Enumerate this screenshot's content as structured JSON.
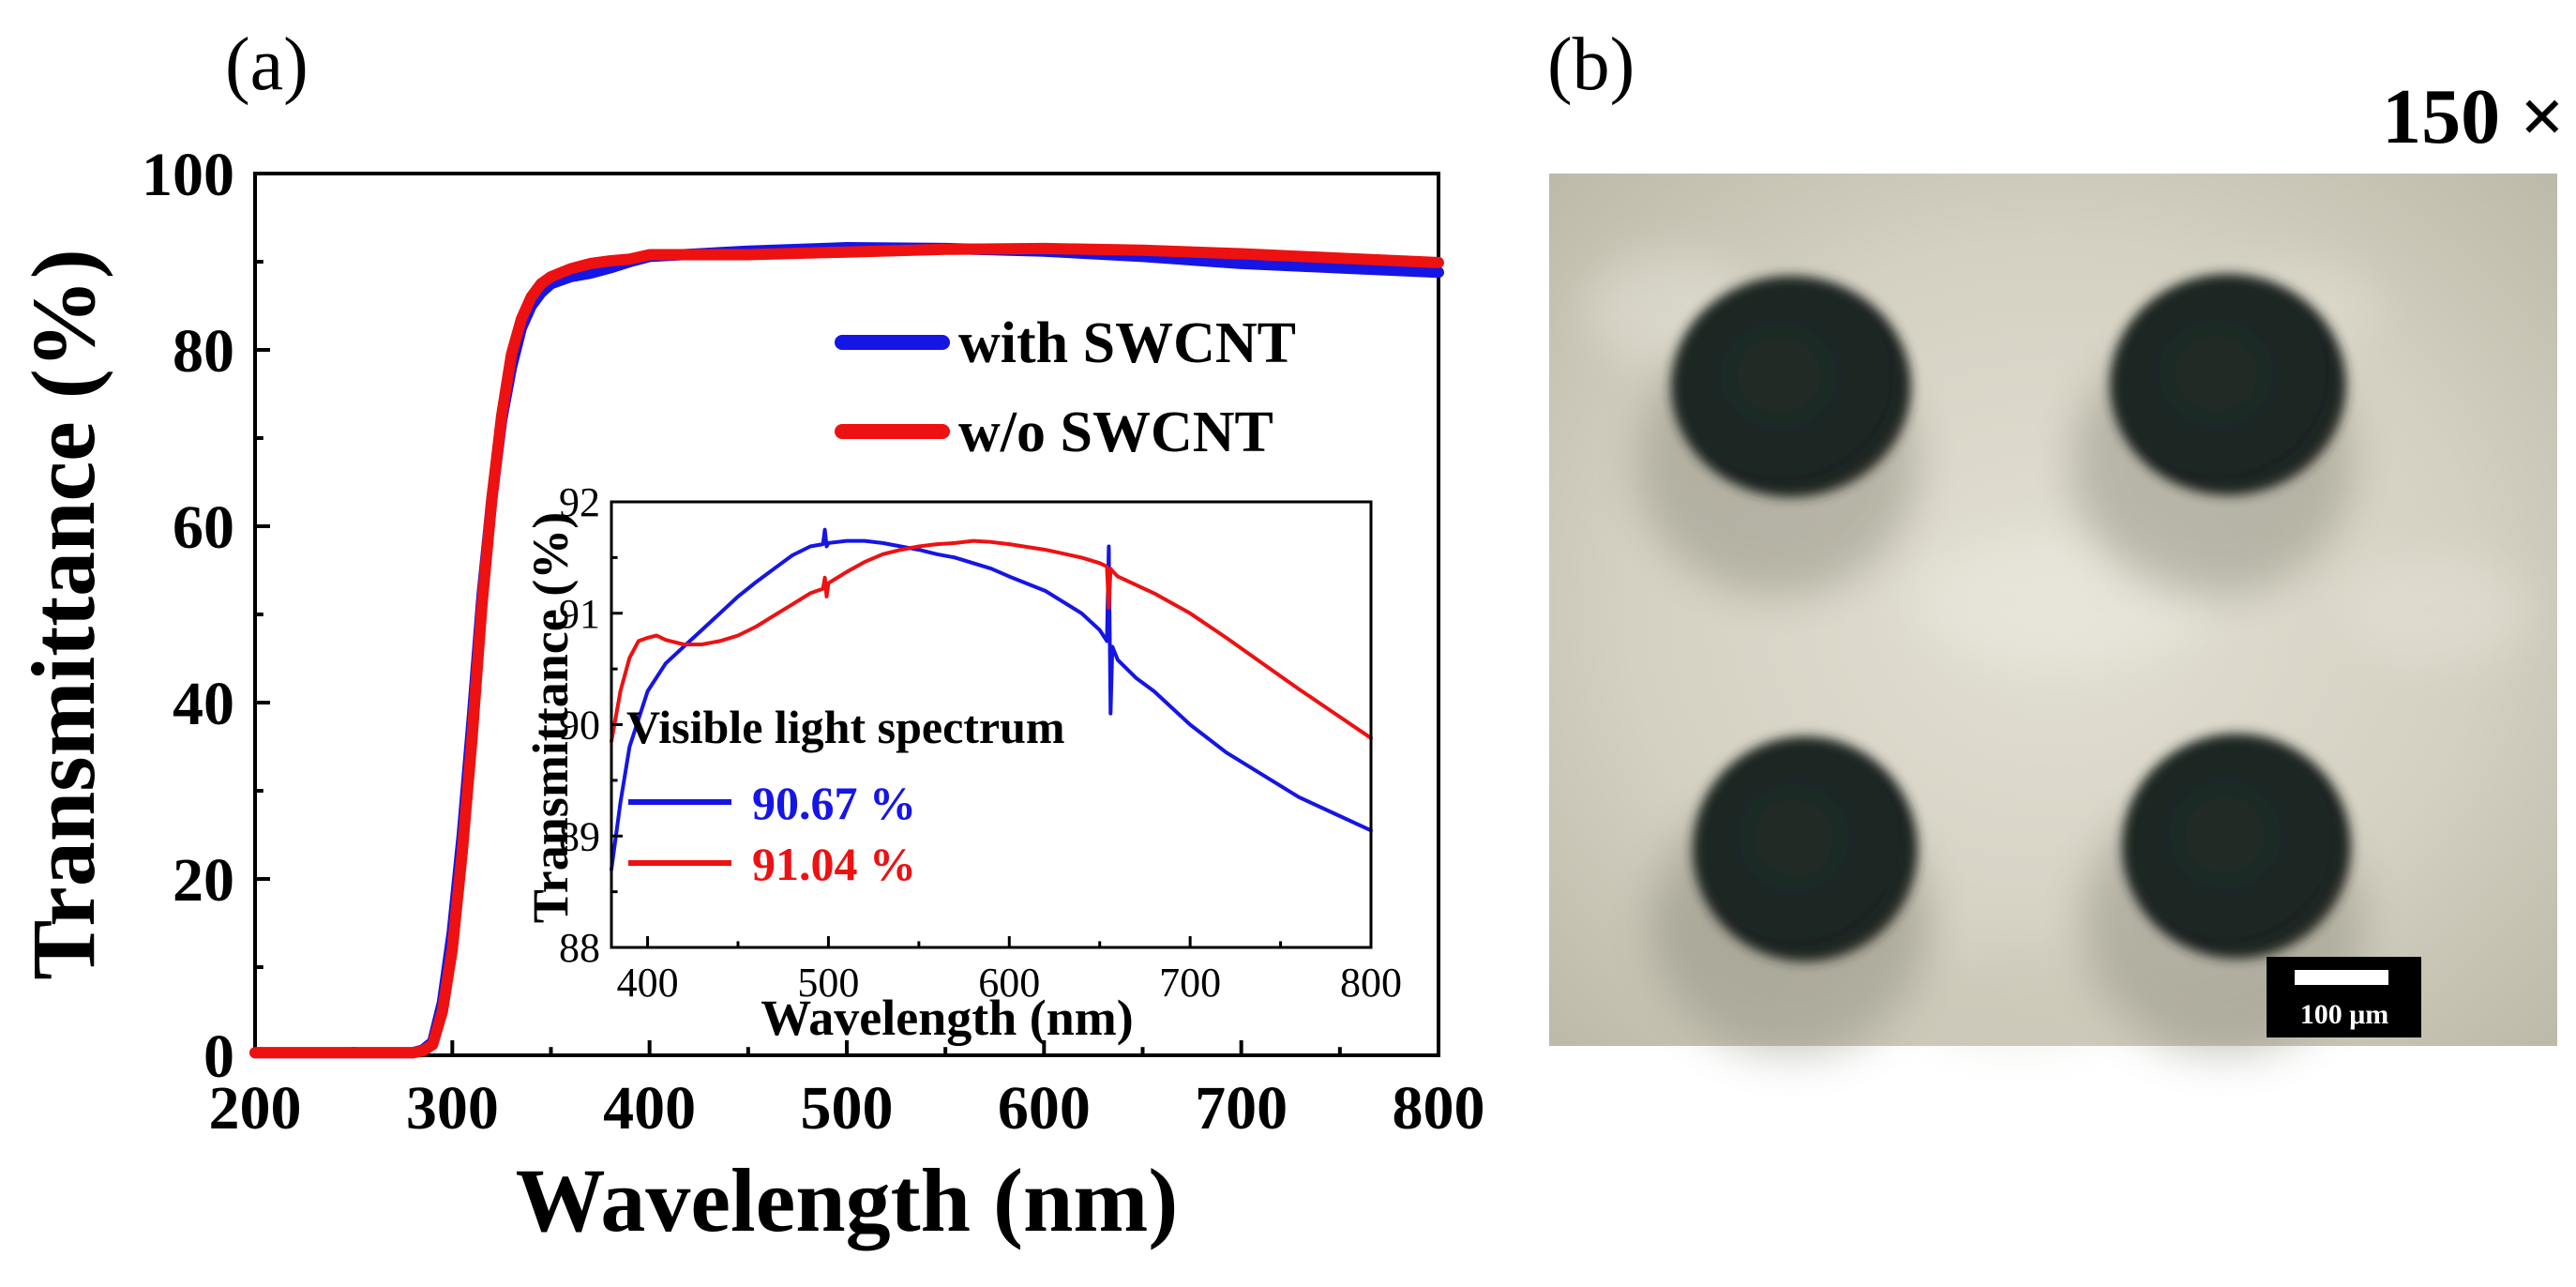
{
  "panels": {
    "a_label": "(a)",
    "b_label": "(b)"
  },
  "chart_data": [
    {
      "type": "line",
      "title": "",
      "xlabel": "Wavelength (nm)",
      "ylabel": "Transmittance (%)",
      "xlim": [
        200,
        800
      ],
      "ylim": [
        0,
        100
      ],
      "xticks": [
        200,
        300,
        400,
        500,
        600,
        700,
        800
      ],
      "yticks": [
        0,
        20,
        40,
        60,
        80,
        100
      ],
      "legend_position": "center-right",
      "series": [
        {
          "name": "with SWCNT",
          "color": "#1515e6",
          "x": [
            200,
            280,
            285,
            290,
            295,
            300,
            305,
            310,
            315,
            320,
            325,
            330,
            335,
            340,
            345,
            350,
            360,
            370,
            380,
            390,
            400,
            450,
            500,
            550,
            600,
            650,
            700,
            750,
            800
          ],
          "y": [
            0.3,
            0.3,
            0.6,
            1.5,
            6,
            14,
            25,
            38,
            52,
            63,
            72,
            78,
            82.5,
            85,
            86.5,
            87.5,
            88.3,
            88.7,
            89.3,
            90,
            90.6,
            91.2,
            91.6,
            91.5,
            91.2,
            90.6,
            89.8,
            89.3,
            88.8
          ]
        },
        {
          "name": "w/o SWCNT",
          "color": "#ee1111",
          "x": [
            200,
            280,
            285,
            290,
            295,
            300,
            305,
            310,
            315,
            320,
            325,
            330,
            335,
            340,
            345,
            350,
            360,
            370,
            380,
            390,
            400,
            450,
            500,
            550,
            600,
            650,
            700,
            750,
            800
          ],
          "y": [
            0.3,
            0.3,
            0.5,
            1.2,
            5,
            12,
            23,
            36,
            51,
            63,
            72.5,
            79.5,
            83.5,
            86,
            87.5,
            88.3,
            89.2,
            89.8,
            90.1,
            90.3,
            90.8,
            90.8,
            91.1,
            91.4,
            91.5,
            91.3,
            90.9,
            90.4,
            89.9
          ]
        }
      ]
    },
    {
      "type": "line",
      "title": "",
      "xlabel": "Wavelength (nm)",
      "ylabel": "Transmittance (%)",
      "xlim": [
        380,
        800
      ],
      "ylim": [
        88,
        92
      ],
      "xticks": [
        400,
        500,
        600,
        700,
        800
      ],
      "yticks": [
        88,
        89,
        90,
        91,
        92
      ],
      "annotation_title": "Visible light spectrum",
      "series": [
        {
          "name": "with SWCNT",
          "label_value": "90.67 %",
          "color": "#1515e6",
          "x": [
            380,
            385,
            390,
            400,
            410,
            420,
            430,
            440,
            450,
            460,
            470,
            480,
            490,
            497,
            498,
            499,
            500,
            510,
            520,
            530,
            540,
            550,
            560,
            570,
            580,
            590,
            600,
            620,
            640,
            650,
            654,
            655,
            656,
            657,
            660,
            670,
            680,
            700,
            720,
            740,
            760,
            780,
            800
          ],
          "y": [
            88.7,
            89.3,
            89.8,
            90.3,
            90.55,
            90.7,
            90.85,
            91.0,
            91.15,
            91.28,
            91.4,
            91.52,
            91.6,
            91.62,
            91.75,
            91.6,
            91.63,
            91.65,
            91.65,
            91.63,
            91.6,
            91.57,
            91.53,
            91.5,
            91.45,
            91.4,
            91.33,
            91.2,
            91.0,
            90.85,
            90.75,
            91.6,
            90.1,
            90.7,
            90.58,
            90.42,
            90.3,
            90.0,
            89.75,
            89.55,
            89.35,
            89.2,
            89.05
          ]
        },
        {
          "name": "w/o SWCNT",
          "label_value": "91.04 %",
          "color": "#ee1111",
          "x": [
            380,
            385,
            390,
            395,
            400,
            405,
            410,
            420,
            430,
            440,
            450,
            460,
            470,
            480,
            490,
            497,
            498,
            499,
            500,
            510,
            520,
            530,
            540,
            550,
            560,
            570,
            580,
            590,
            600,
            620,
            640,
            650,
            654,
            655,
            656,
            657,
            660,
            680,
            700,
            720,
            740,
            760,
            780,
            800
          ],
          "y": [
            89.85,
            90.3,
            90.6,
            90.75,
            90.78,
            90.8,
            90.76,
            90.72,
            90.72,
            90.75,
            90.8,
            90.88,
            90.98,
            91.08,
            91.18,
            91.22,
            91.32,
            91.15,
            91.27,
            91.37,
            91.46,
            91.53,
            91.57,
            91.6,
            91.62,
            91.63,
            91.65,
            91.64,
            91.62,
            91.57,
            91.5,
            91.45,
            91.42,
            91.05,
            91.4,
            91.38,
            91.33,
            91.18,
            91.0,
            90.78,
            90.55,
            90.32,
            90.1,
            89.88
          ]
        }
      ]
    }
  ],
  "micrograph": {
    "magnification": "150 ×",
    "scale_bar_label": "100 μm",
    "background_color": "#d4d0c2",
    "dot_color": "#1b2421"
  }
}
